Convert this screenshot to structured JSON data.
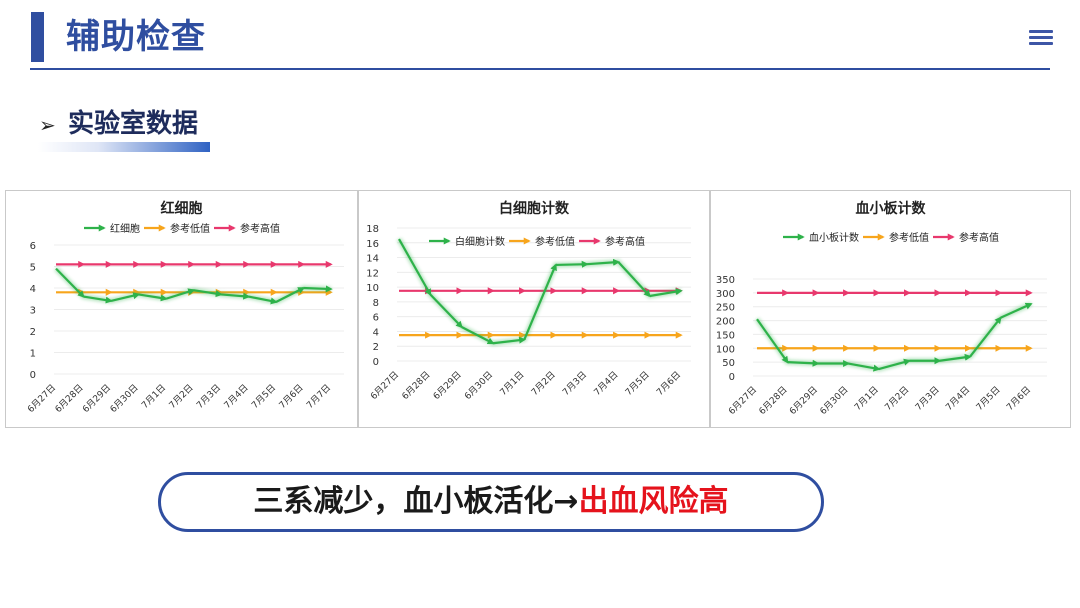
{
  "header": {
    "title": "辅助检查",
    "menu_icon": "hamburger-menu-icon",
    "accent_color": "#2f4ea0"
  },
  "section": {
    "bullet_icon": "arrow-bullet-icon",
    "title": "实验室数据"
  },
  "conclusion": {
    "text_main": "三系减少，血小板活化→",
    "text_highlight": "出血风险高",
    "highlight_color": "#e5131c"
  },
  "chart_data": [
    {
      "type": "line",
      "title": "红细胞",
      "categories": [
        "6月27日",
        "6月28日",
        "6月29日",
        "6月30日",
        "7月1日",
        "7月2日",
        "7月3日",
        "7月4日",
        "7月5日",
        "7月6日",
        "7月7日"
      ],
      "ylim": [
        0,
        6
      ],
      "yticks": [
        0,
        1,
        2,
        3,
        4,
        5,
        6
      ],
      "legend": "top",
      "series": [
        {
          "name": "红细胞",
          "color": "#2eb24a",
          "values": [
            4.9,
            3.6,
            3.4,
            3.7,
            3.5,
            3.9,
            3.7,
            3.6,
            3.35,
            4.0,
            3.95
          ]
        },
        {
          "name": "参考低值",
          "color": "#f7a51c",
          "values": [
            3.8,
            3.8,
            3.8,
            3.8,
            3.8,
            3.8,
            3.8,
            3.8,
            3.8,
            3.8,
            3.8
          ]
        },
        {
          "name": "参考高值",
          "color": "#e8386d",
          "values": [
            5.1,
            5.1,
            5.1,
            5.1,
            5.1,
            5.1,
            5.1,
            5.1,
            5.1,
            5.1,
            5.1
          ]
        }
      ]
    },
    {
      "type": "line",
      "title": "白细胞计数",
      "categories": [
        "6月27日",
        "6月28日",
        "6月29日",
        "6月30日",
        "7月1日",
        "7月2日",
        "7月3日",
        "7月4日",
        "7月5日",
        "7月6日"
      ],
      "ylim": [
        0,
        18
      ],
      "yticks": [
        0,
        2,
        4,
        6,
        8,
        10,
        12,
        14,
        16,
        18
      ],
      "legend": "top",
      "series": [
        {
          "name": "白细胞计数",
          "color": "#2eb24a",
          "values": [
            16.5,
            9.0,
            4.6,
            2.4,
            2.9,
            13.0,
            13.1,
            13.4,
            8.8,
            9.5
          ]
        },
        {
          "name": "参考低值",
          "color": "#f7a51c",
          "values": [
            3.5,
            3.5,
            3.5,
            3.5,
            3.5,
            3.5,
            3.5,
            3.5,
            3.5,
            3.5
          ]
        },
        {
          "name": "参考高值",
          "color": "#e8386d",
          "values": [
            9.5,
            9.5,
            9.5,
            9.5,
            9.5,
            9.5,
            9.5,
            9.5,
            9.5,
            9.5
          ]
        }
      ]
    },
    {
      "type": "line",
      "title": "血小板计数",
      "categories": [
        "6月27日",
        "6月28日",
        "6月29日",
        "6月30日",
        "7月1日",
        "7月2日",
        "7月3日",
        "7月4日",
        "7月5日",
        "7月6日"
      ],
      "ylim": [
        0,
        350
      ],
      "yticks": [
        0,
        50,
        100,
        150,
        200,
        250,
        300,
        350
      ],
      "legend": "top",
      "series": [
        {
          "name": "血小板计数",
          "color": "#2eb24a",
          "values": [
            205,
            50,
            45,
            45,
            25,
            55,
            55,
            70,
            210,
            260
          ]
        },
        {
          "name": "参考低值",
          "color": "#f7a51c",
          "values": [
            100,
            100,
            100,
            100,
            100,
            100,
            100,
            100,
            100,
            100
          ]
        },
        {
          "name": "参考高值",
          "color": "#e8386d",
          "values": [
            300,
            300,
            300,
            300,
            300,
            300,
            300,
            300,
            300,
            300
          ]
        }
      ]
    }
  ]
}
